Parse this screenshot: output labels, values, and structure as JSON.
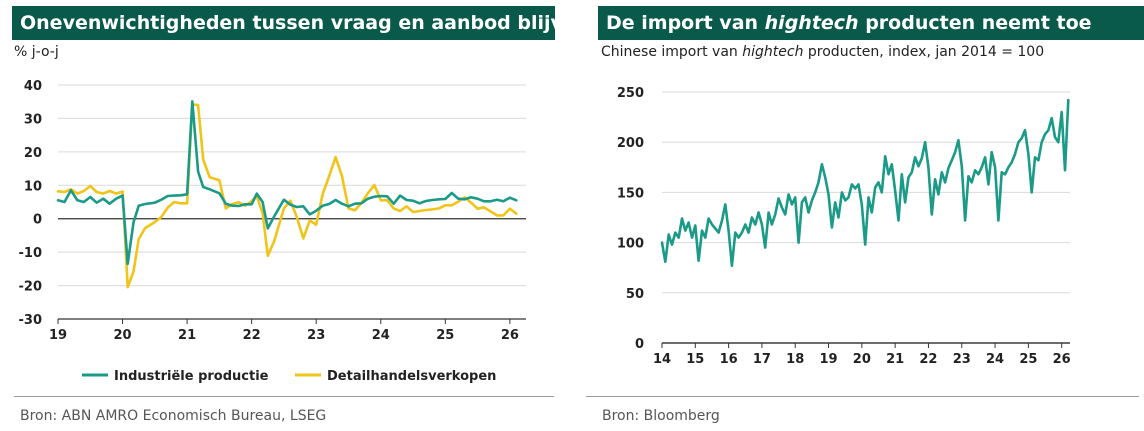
{
  "left": {
    "title": "Onevenwichtigheden tussen vraag en aanbod blijven",
    "unit_label": "% j-o-j",
    "source": "Bron: ABN AMRO Economisch Bureau, LSEG"
  },
  "right": {
    "title_pre": "De import van ",
    "title_em": "hightech",
    "title_post": " producten neemt toe",
    "subtitle_pre": "Chinese import van ",
    "subtitle_em": "hightech",
    "subtitle_post": " producten, index, jan 2014 = 100",
    "source": "Bron: Bloomberg"
  },
  "colors": {
    "industrie": "#1a9a87",
    "detail": "#f0c419",
    "banner": "#0a5a4c",
    "grid": "#d9d9d9"
  },
  "chart_data": [
    {
      "type": "line",
      "title": "Onevenwichtigheden tussen vraag en aanbod blijven",
      "ylabel": "% j-o-j",
      "xlim": [
        2019,
        2026.25
      ],
      "ylim": [
        -30,
        40
      ],
      "yticks": [
        "40",
        "30",
        "20",
        "10",
        "0",
        "-10",
        "-20",
        "-30"
      ],
      "ytick_values": [
        40,
        30,
        20,
        10,
        0,
        -10,
        -20,
        -30
      ],
      "xticks": [
        "19",
        "20",
        "21",
        "22",
        "23",
        "24",
        "25",
        "26"
      ],
      "xtick_values": [
        2019,
        2020,
        2021,
        2022,
        2023,
        2024,
        2025,
        2026
      ],
      "legend_position": "bottom",
      "series": [
        {
          "name": "Industriële productie",
          "color": "#1a9a87",
          "x": [
            2019.0,
            2019.1,
            2019.2,
            2019.3,
            2019.4,
            2019.5,
            2019.6,
            2019.7,
            2019.8,
            2019.9,
            2020.0,
            2020.08,
            2020.17,
            2020.25,
            2020.35,
            2020.5,
            2020.6,
            2020.7,
            2020.8,
            2020.9,
            2021.0,
            2021.08,
            2021.17,
            2021.25,
            2021.35,
            2021.5,
            2021.6,
            2021.7,
            2021.8,
            2021.9,
            2022.0,
            2022.08,
            2022.17,
            2022.25,
            2022.35,
            2022.5,
            2022.6,
            2022.7,
            2022.8,
            2022.9,
            2023.0,
            2023.1,
            2023.2,
            2023.3,
            2023.4,
            2023.5,
            2023.6,
            2023.7,
            2023.8,
            2023.9,
            2024.0,
            2024.1,
            2024.2,
            2024.3,
            2024.4,
            2024.5,
            2024.6,
            2024.7,
            2024.8,
            2024.9,
            2025.0,
            2025.1,
            2025.2,
            2025.3,
            2025.4,
            2025.5,
            2025.6,
            2025.7,
            2025.8,
            2025.9,
            2026.0,
            2026.1
          ],
          "values": [
            5.5,
            5.0,
            8.5,
            5.5,
            5.0,
            6.5,
            4.8,
            6.0,
            4.5,
            6.0,
            6.9,
            -13.5,
            -1.1,
            3.9,
            4.4,
            4.8,
            5.7,
            6.8,
            6.9,
            7.0,
            7.3,
            35.1,
            14.1,
            9.5,
            8.8,
            7.6,
            4.5,
            3.9,
            3.8,
            4.3,
            4.3,
            7.5,
            5.0,
            -2.9,
            0.7,
            5.7,
            4.2,
            3.5,
            3.7,
            1.3,
            2.4,
            3.9,
            4.4,
            5.6,
            4.5,
            3.7,
            4.5,
            4.6,
            6.0,
            6.6,
            6.8,
            6.7,
            4.5,
            6.9,
            5.6,
            5.4,
            4.6,
            5.3,
            5.6,
            5.8,
            5.9,
            7.7,
            6.0,
            5.8,
            6.4,
            6.0,
            5.2,
            5.2,
            5.7,
            5.2,
            6.3,
            5.5
          ]
        },
        {
          "name": "Detailhandelsverkopen",
          "color": "#f0c419",
          "x": [
            2019.0,
            2019.1,
            2019.2,
            2019.3,
            2019.4,
            2019.5,
            2019.6,
            2019.7,
            2019.8,
            2019.9,
            2020.0,
            2020.08,
            2020.17,
            2020.25,
            2020.35,
            2020.5,
            2020.6,
            2020.7,
            2020.8,
            2020.9,
            2021.0,
            2021.08,
            2021.17,
            2021.25,
            2021.35,
            2021.5,
            2021.6,
            2021.7,
            2021.8,
            2021.9,
            2022.0,
            2022.08,
            2022.17,
            2022.25,
            2022.35,
            2022.5,
            2022.6,
            2022.7,
            2022.8,
            2022.9,
            2023.0,
            2023.1,
            2023.2,
            2023.3,
            2023.4,
            2023.5,
            2023.6,
            2023.7,
            2023.8,
            2023.9,
            2024.0,
            2024.1,
            2024.2,
            2024.3,
            2024.4,
            2024.5,
            2024.6,
            2024.7,
            2024.8,
            2024.9,
            2025.0,
            2025.1,
            2025.2,
            2025.3,
            2025.4,
            2025.5,
            2025.6,
            2025.7,
            2025.8,
            2025.9,
            2026.0,
            2026.1
          ],
          "values": [
            8.2,
            8.0,
            8.8,
            7.5,
            8.3,
            9.8,
            8.0,
            7.5,
            8.3,
            7.5,
            8.1,
            -20.5,
            -15.8,
            -6.1,
            -2.8,
            -1.0,
            0.5,
            3.3,
            5.0,
            4.6,
            4.6,
            34.2,
            34.0,
            17.7,
            12.4,
            11.5,
            3.1,
            4.4,
            4.9,
            3.9,
            5.3,
            6.7,
            1.7,
            -11.1,
            -6.7,
            3.1,
            5.4,
            0.5,
            -5.9,
            -0.5,
            -1.8,
            7.4,
            12.7,
            18.4,
            12.7,
            3.1,
            2.5,
            4.7,
            7.6,
            10.1,
            5.5,
            5.5,
            3.1,
            2.3,
            3.7,
            2.0,
            2.3,
            2.6,
            2.8,
            3.1,
            4.0,
            4.0,
            5.1,
            6.4,
            4.8,
            3.0,
            3.4,
            2.2,
            1.0,
            1.0,
            3.0,
            1.5
          ]
        }
      ]
    },
    {
      "type": "line",
      "title": "De import van hightech producten neemt toe",
      "subtitle": "Chinese import van hightech producten, index, jan 2014 = 100",
      "xlim": [
        2014,
        2026.25
      ],
      "ylim": [
        0,
        250
      ],
      "yticks": [
        "250",
        "200",
        "150",
        "100",
        "50",
        "0"
      ],
      "ytick_values": [
        250,
        200,
        150,
        100,
        50,
        0
      ],
      "xticks": [
        "14",
        "15",
        "16",
        "17",
        "18",
        "19",
        "20",
        "21",
        "22",
        "23",
        "24",
        "25",
        "26"
      ],
      "xtick_values": [
        2014,
        2015,
        2016,
        2017,
        2018,
        2019,
        2020,
        2021,
        2022,
        2023,
        2024,
        2025,
        2026
      ],
      "series": [
        {
          "name": "Chinese import hightech",
          "color": "#1a9a87",
          "x": [
            2014.0,
            2014.1,
            2014.2,
            2014.3,
            2014.4,
            2014.5,
            2014.6,
            2014.7,
            2014.8,
            2014.9,
            2015.0,
            2015.1,
            2015.2,
            2015.3,
            2015.4,
            2015.5,
            2015.6,
            2015.7,
            2015.8,
            2015.9,
            2016.0,
            2016.1,
            2016.2,
            2016.3,
            2016.4,
            2016.5,
            2016.6,
            2016.7,
            2016.8,
            2016.9,
            2017.0,
            2017.1,
            2017.2,
            2017.3,
            2017.4,
            2017.5,
            2017.6,
            2017.7,
            2017.8,
            2017.9,
            2018.0,
            2018.1,
            2018.2,
            2018.3,
            2018.4,
            2018.5,
            2018.6,
            2018.7,
            2018.8,
            2018.9,
            2019.0,
            2019.1,
            2019.2,
            2019.3,
            2019.4,
            2019.5,
            2019.6,
            2019.7,
            2019.8,
            2019.9,
            2020.0,
            2020.1,
            2020.2,
            2020.3,
            2020.4,
            2020.5,
            2020.6,
            2020.7,
            2020.8,
            2020.9,
            2021.0,
            2021.1,
            2021.2,
            2021.3,
            2021.4,
            2021.5,
            2021.6,
            2021.7,
            2021.8,
            2021.9,
            2022.0,
            2022.1,
            2022.2,
            2022.3,
            2022.4,
            2022.5,
            2022.6,
            2022.7,
            2022.8,
            2022.9,
            2023.0,
            2023.1,
            2023.2,
            2023.3,
            2023.4,
            2023.5,
            2023.6,
            2023.7,
            2023.8,
            2023.9,
            2024.0,
            2024.1,
            2024.2,
            2024.3,
            2024.4,
            2024.5,
            2024.6,
            2024.7,
            2024.8,
            2024.9,
            2025.0,
            2025.1,
            2025.2,
            2025.3,
            2025.4,
            2025.5,
            2025.6,
            2025.7,
            2025.8,
            2025.9,
            2026.0,
            2026.1,
            2026.2
          ],
          "values": [
            100,
            81,
            108,
            98,
            110,
            105,
            124,
            112,
            120,
            105,
            117,
            82,
            112,
            105,
            124,
            118,
            114,
            110,
            122,
            138,
            112,
            77,
            110,
            105,
            110,
            118,
            110,
            125,
            118,
            130,
            118,
            95,
            130,
            118,
            128,
            144,
            135,
            128,
            148,
            138,
            145,
            100,
            140,
            145,
            130,
            142,
            150,
            160,
            178,
            165,
            148,
            115,
            140,
            125,
            150,
            142,
            145,
            158,
            154,
            158,
            138,
            98,
            145,
            130,
            155,
            160,
            150,
            186,
            168,
            178,
            152,
            122,
            168,
            140,
            165,
            170,
            185,
            176,
            184,
            200,
            175,
            128,
            163,
            148,
            170,
            160,
            174,
            182,
            190,
            202,
            176,
            122,
            166,
            160,
            172,
            168,
            175,
            185,
            158,
            190,
            175,
            122,
            170,
            168,
            175,
            180,
            188,
            200,
            204,
            212,
            188,
            150,
            185,
            182,
            200,
            208,
            212,
            224,
            205,
            200,
            230,
            172,
            242
          ]
        }
      ]
    }
  ]
}
